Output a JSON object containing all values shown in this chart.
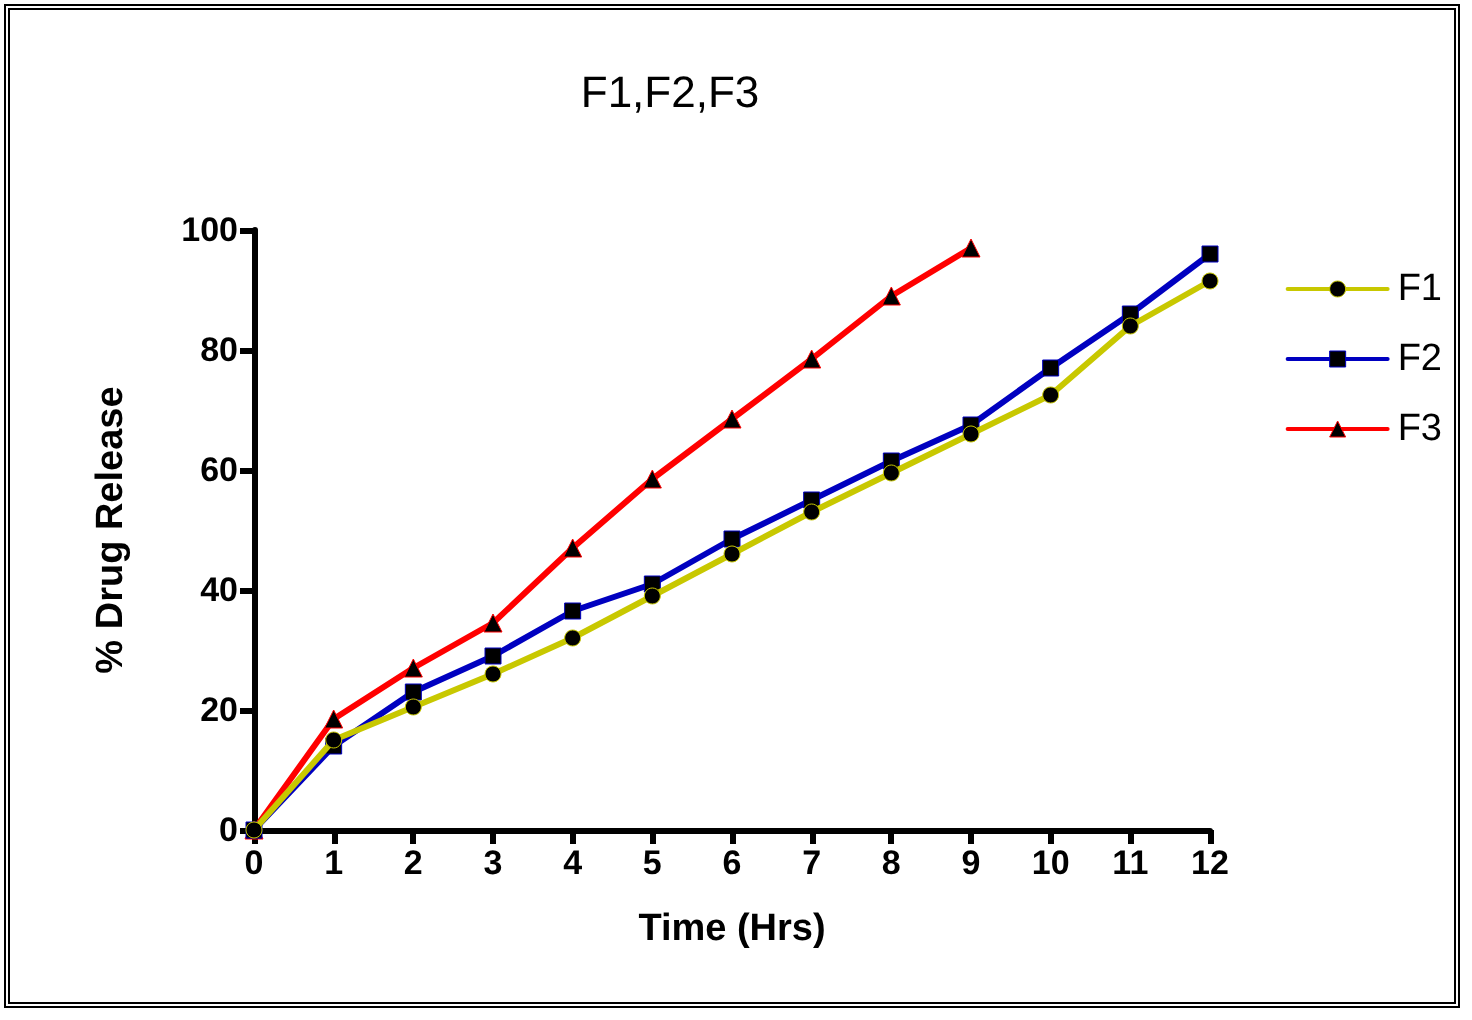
{
  "chart_data": {
    "type": "line",
    "title": "F1,F2,F3",
    "xlabel": "Time (Hrs)",
    "ylabel": "% Drug Release",
    "x": [
      0,
      1,
      2,
      3,
      4,
      5,
      6,
      7,
      8,
      9,
      10,
      11,
      12
    ],
    "series": [
      {
        "name": "F1",
        "color": "#c8c800",
        "marker": "circle",
        "values": [
          0,
          15,
          20.5,
          26,
          32,
          39,
          46,
          53,
          59.5,
          66,
          72.5,
          84,
          91.5
        ]
      },
      {
        "name": "F2",
        "color": "#0000c0",
        "marker": "square",
        "values": [
          0,
          14,
          23,
          29,
          36.5,
          41,
          48.5,
          55,
          61.5,
          67.5,
          77,
          86,
          96
        ]
      },
      {
        "name": "F3",
        "color": "#ff0000",
        "marker": "triangle",
        "values": [
          0,
          18.5,
          27,
          34.5,
          47,
          58.5,
          68.5,
          78.5,
          89,
          97,
          null,
          null,
          null
        ]
      }
    ],
    "xlim": [
      0,
      12
    ],
    "xticks": [
      0,
      1,
      2,
      3,
      4,
      5,
      6,
      7,
      8,
      9,
      10,
      11,
      12
    ],
    "ylim": [
      0,
      100
    ],
    "yticks": [
      0,
      20,
      40,
      60,
      80,
      100
    ],
    "grid": false,
    "legend": "right",
    "line_style": "solid"
  }
}
